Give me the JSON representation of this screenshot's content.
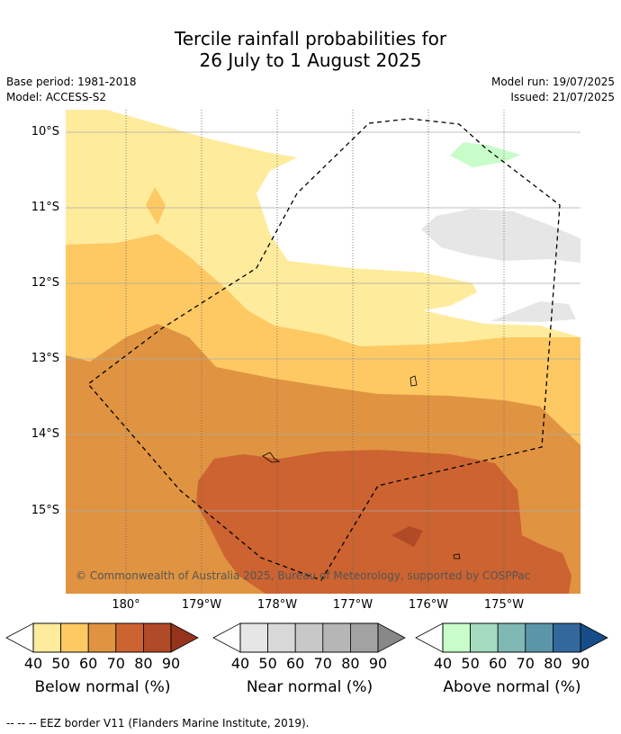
{
  "title_line1": "Tercile rainfall probabilities for",
  "title_line2": "26 July to 1 August 2025",
  "base_period": "Base period: 1981-2018",
  "model": "Model: ACCESS-S2",
  "model_run": "Model run: 19/07/2025",
  "issued": "Issued: 21/07/2025",
  "copyright": "© Commonwealth of Australia 2025, Bureau of Meteorology, supported by COSPPac",
  "footer": "--  --  -- EEZ border V11 (Flanders Marine Institute, 2019).",
  "lat_labels": [
    "10°S",
    "11°S",
    "12°S",
    "13°S",
    "14°S",
    "15°S"
  ],
  "lon_labels": [
    "180°",
    "179°W",
    "178°W",
    "177°W",
    "176°W",
    "175°W"
  ],
  "colorbars": [
    {
      "label": "Below normal (%)",
      "ticks": [
        "40",
        "50",
        "60",
        "70",
        "80",
        "90"
      ],
      "colors": [
        "#ffeb9c",
        "#fec963",
        "#e09340",
        "#cc6330",
        "#b04a27",
        "#96331c"
      ]
    },
    {
      "label": "Near normal (%)",
      "ticks": [
        "40",
        "50",
        "60",
        "70",
        "80",
        "90"
      ],
      "colors": [
        "#e6e6e6",
        "#d8d8d8",
        "#c8c8c8",
        "#b6b6b6",
        "#a2a2a2",
        "#888888"
      ]
    },
    {
      "label": "Above normal (%)",
      "ticks": [
        "40",
        "50",
        "60",
        "70",
        "80",
        "90"
      ],
      "colors": [
        "#c8fcc8",
        "#a4dcc0",
        "#80b8b4",
        "#5a96a8",
        "#33689c",
        "#164c88"
      ]
    }
  ]
}
